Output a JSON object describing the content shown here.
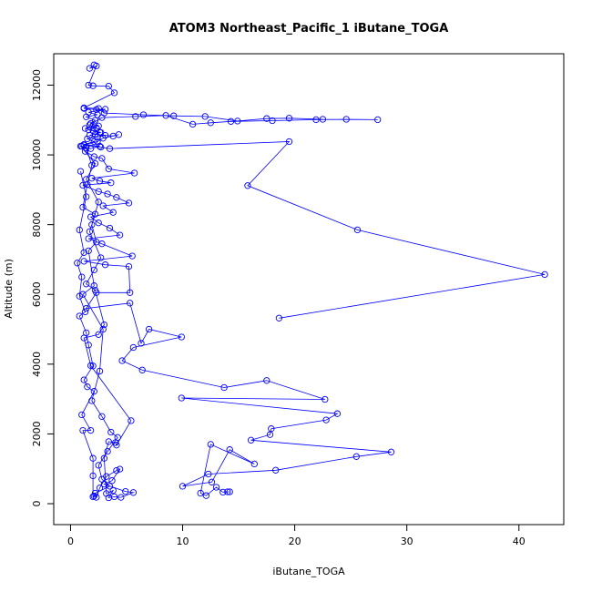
{
  "chart_data": {
    "type": "line",
    "title": "ATOM3 Northeast_Pacific_1 iButane_TOGA",
    "xlabel": "iButane_TOGA",
    "ylabel": "Altitude (m)",
    "xlim": [
      -1.5,
      44
    ],
    "ylim": [
      -600,
      12900
    ],
    "x_ticks": [
      0,
      10,
      20,
      30,
      40
    ],
    "y_ticks": [
      0,
      2000,
      4000,
      6000,
      8000,
      10000,
      12000
    ],
    "marker": "open-circle",
    "line_color": "#0000ff",
    "grid": false,
    "series": [
      {
        "points": [
          [
            2.1,
            12580
          ],
          [
            1.7,
            12480
          ],
          [
            2.3,
            12550
          ],
          [
            1.6,
            12000
          ],
          [
            2.0,
            11980
          ],
          [
            3.4,
            11970
          ],
          [
            3.9,
            11780
          ],
          [
            1.2,
            11350
          ],
          [
            2.5,
            11330
          ],
          [
            3.0,
            11200
          ],
          [
            6.5,
            11150
          ],
          [
            9.2,
            11120
          ],
          [
            12.0,
            11100
          ],
          [
            14.9,
            10970
          ],
          [
            17.5,
            11040
          ],
          [
            19.5,
            11050
          ],
          [
            22.5,
            11020
          ],
          [
            27.4,
            11010
          ],
          [
            24.6,
            11020
          ],
          [
            21.9,
            11010
          ],
          [
            18.0,
            10980
          ],
          [
            14.3,
            10960
          ],
          [
            12.5,
            10920
          ],
          [
            10.9,
            10880
          ],
          [
            8.5,
            11130
          ],
          [
            5.8,
            11100
          ],
          [
            2.8,
            11070
          ],
          [
            1.7,
            10860
          ],
          [
            2.3,
            10780
          ],
          [
            1.6,
            10720
          ],
          [
            2.6,
            10650
          ],
          [
            2.2,
            10590
          ],
          [
            3.8,
            10540
          ],
          [
            4.3,
            10580
          ],
          [
            2.9,
            10480
          ],
          [
            2.4,
            10380
          ],
          [
            1.2,
            10280
          ],
          [
            2.7,
            10220
          ],
          [
            3.5,
            10180
          ],
          [
            19.5,
            10380
          ],
          [
            15.8,
            9120
          ],
          [
            25.6,
            7850
          ],
          [
            42.3,
            6570
          ],
          [
            18.6,
            5320
          ]
        ]
      },
      {
        "points": [
          [
            1.3,
            10100
          ],
          [
            2.1,
            9950
          ],
          [
            2.8,
            9900
          ],
          [
            3.4,
            9600
          ],
          [
            5.7,
            9480
          ],
          [
            1.9,
            9330
          ],
          [
            2.6,
            9250
          ],
          [
            3.6,
            9200
          ],
          [
            1.1,
            9130
          ],
          [
            2.5,
            8950
          ],
          [
            3.3,
            8880
          ],
          [
            4.1,
            8780
          ],
          [
            5.2,
            8620
          ],
          [
            2.9,
            8540
          ],
          [
            3.8,
            8350
          ],
          [
            1.8,
            8220
          ],
          [
            2.5,
            8050
          ],
          [
            3.5,
            7900
          ],
          [
            4.4,
            7700
          ],
          [
            1.6,
            7600
          ],
          [
            2.8,
            7450
          ],
          [
            5.5,
            7100
          ],
          [
            1.2,
            6950
          ],
          [
            3.1,
            6850
          ],
          [
            5.2,
            6800
          ],
          [
            5.3,
            6050
          ],
          [
            2.3,
            6050
          ],
          [
            1.4,
            5600
          ],
          [
            5.3,
            5750
          ],
          [
            6.3,
            4600
          ],
          [
            7.0,
            5000
          ],
          [
            9.9,
            4780
          ],
          [
            5.6,
            4480
          ],
          [
            4.6,
            4100
          ],
          [
            6.4,
            3830
          ],
          [
            13.7,
            3330
          ],
          [
            17.5,
            3530
          ],
          [
            22.7,
            2990
          ],
          [
            9.9,
            3030
          ],
          [
            23.8,
            2580
          ],
          [
            22.8,
            2400
          ],
          [
            17.9,
            2150
          ],
          [
            17.8,
            1980
          ],
          [
            16.1,
            1820
          ],
          [
            28.6,
            1480
          ],
          [
            25.5,
            1350
          ],
          [
            18.3,
            960
          ],
          [
            12.3,
            850
          ],
          [
            10.0,
            500
          ],
          [
            12.6,
            620
          ],
          [
            14.2,
            1550
          ],
          [
            16.4,
            1140
          ],
          [
            12.5,
            1700
          ],
          [
            11.6,
            300
          ],
          [
            12.1,
            230
          ],
          [
            13.0,
            470
          ],
          [
            13.6,
            330
          ],
          [
            14.0,
            340
          ],
          [
            14.2,
            340
          ]
        ]
      },
      {
        "points": [
          [
            0.9,
            9530
          ],
          [
            1.4,
            8800
          ],
          [
            0.8,
            7850
          ],
          [
            1.2,
            7200
          ],
          [
            0.6,
            6900
          ],
          [
            1.0,
            6500
          ],
          [
            0.8,
            5950
          ],
          [
            1.3,
            5500
          ],
          [
            0.8,
            5380
          ],
          [
            1.4,
            4900
          ],
          [
            1.6,
            4550
          ],
          [
            2.0,
            3950
          ],
          [
            1.2,
            3550
          ],
          [
            1.5,
            3350
          ],
          [
            2.1,
            3220
          ],
          [
            1.0,
            2550
          ],
          [
            1.8,
            2100
          ],
          [
            1.1,
            2100
          ],
          [
            2.0,
            1300
          ],
          [
            2.0,
            800
          ],
          [
            2.0,
            200
          ],
          [
            2.3,
            180
          ],
          [
            2.6,
            450
          ],
          [
            3.2,
            780
          ],
          [
            4.1,
            950
          ],
          [
            4.4,
            990
          ],
          [
            3.7,
            660
          ],
          [
            3.0,
            560
          ],
          [
            4.9,
            350
          ],
          [
            5.6,
            320
          ],
          [
            4.5,
            180
          ],
          [
            3.9,
            200
          ],
          [
            3.4,
            170
          ],
          [
            3.8,
            380
          ],
          [
            3.2,
            290
          ],
          [
            3.0,
            1300
          ],
          [
            3.4,
            1780
          ],
          [
            4.0,
            1750
          ],
          [
            4.1,
            1680
          ],
          [
            5.4,
            2380
          ],
          [
            1.8,
            3960
          ],
          [
            1.2,
            4750
          ],
          [
            2.5,
            4850
          ],
          [
            3.0,
            5130
          ],
          [
            2.2,
            6120
          ],
          [
            1.4,
            6300
          ],
          [
            2.1,
            6700
          ],
          [
            2.7,
            7050
          ],
          [
            1.7,
            7800
          ],
          [
            2.2,
            8300
          ],
          [
            1.1,
            8500
          ],
          [
            1.5,
            9150
          ],
          [
            1.9,
            9700
          ],
          [
            1.4,
            10200
          ],
          [
            1.0,
            10250
          ]
        ]
      },
      {
        "points": [
          [
            1.2,
            11330
          ],
          [
            2.3,
            11300
          ],
          [
            3.1,
            11310
          ],
          [
            1.6,
            11220
          ],
          [
            2.4,
            11150
          ],
          [
            1.4,
            11090
          ],
          [
            2.2,
            10990
          ],
          [
            1.8,
            10900
          ],
          [
            2.5,
            10830
          ],
          [
            1.3,
            10760
          ],
          [
            2.0,
            10700
          ],
          [
            2.7,
            10640
          ],
          [
            1.7,
            10560
          ],
          [
            2.4,
            10510
          ],
          [
            3.1,
            10560
          ],
          [
            1.5,
            10460
          ],
          [
            2.1,
            10380
          ],
          [
            1.2,
            10300
          ],
          [
            2.6,
            10250
          ],
          [
            1.8,
            10180
          ],
          [
            0.9,
            10250
          ],
          [
            2.2,
            9750
          ],
          [
            1.4,
            9300
          ],
          [
            2.5,
            8650
          ],
          [
            1.9,
            8000
          ],
          [
            2.3,
            7500
          ],
          [
            1.6,
            7250
          ],
          [
            2.1,
            6250
          ],
          [
            1.1,
            6000
          ],
          [
            2.9,
            5000
          ],
          [
            2.6,
            3800
          ],
          [
            1.9,
            2950
          ],
          [
            2.8,
            2500
          ],
          [
            3.6,
            2050
          ],
          [
            4.2,
            1900
          ],
          [
            3.3,
            1500
          ],
          [
            2.5,
            1100
          ],
          [
            2.8,
            700
          ],
          [
            3.5,
            500
          ],
          [
            2.2,
            300
          ],
          [
            2.1,
            220
          ]
        ]
      }
    ]
  }
}
